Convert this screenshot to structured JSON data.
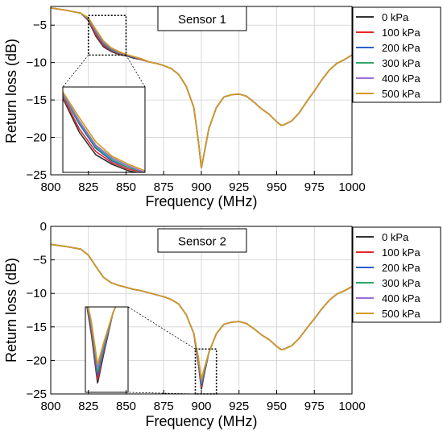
{
  "chart_data": [
    {
      "type": "line",
      "title": "Sensor 1",
      "xlabel": "Frequency (MHz)",
      "ylabel": "Return loss (dB)",
      "xlim": [
        800,
        1000
      ],
      "ylim": [
        -25,
        -2.5
      ],
      "xticks": [
        "800",
        "825",
        "850",
        "875",
        "900",
        "925",
        "950",
        "975",
        "1000"
      ],
      "yticks": [
        "-5",
        "-10",
        "-15",
        "-20",
        "-25"
      ],
      "grid": true,
      "legend": "right",
      "x": [
        800,
        810,
        820,
        825,
        830,
        835,
        840,
        845,
        850,
        855,
        860,
        865,
        870,
        875,
        880,
        885,
        890,
        895,
        898,
        900,
        902,
        905,
        910,
        915,
        920,
        925,
        930,
        935,
        940,
        945,
        950,
        953,
        955,
        960,
        965,
        970,
        975,
        980,
        985,
        990,
        995,
        1000
      ],
      "series": [
        {
          "name": "0 kPa",
          "color": "#333333",
          "values": [
            -2.7,
            -3.0,
            -3.4,
            -4.4,
            -6.5,
            -7.9,
            -8.5,
            -8.9,
            -9.1,
            -9.4,
            -9.6,
            -9.9,
            -10.1,
            -10.4,
            -10.8,
            -11.6,
            -13.2,
            -16.0,
            -20.5,
            -24.1,
            -22.0,
            -18.8,
            -16.0,
            -14.6,
            -14.3,
            -14.2,
            -14.5,
            -15.3,
            -16.2,
            -16.9,
            -17.9,
            -18.4,
            -18.3,
            -17.8,
            -16.7,
            -15.2,
            -13.8,
            -12.3,
            -11.0,
            -10.1,
            -9.6,
            -9.0
          ]
        },
        {
          "name": "100 kPa",
          "color": "#e8262a",
          "values": [
            -2.7,
            -3.0,
            -3.4,
            -4.3,
            -6.3,
            -7.7,
            -8.4,
            -8.8,
            -9.0,
            -9.3,
            -9.6,
            -9.9,
            -10.1,
            -10.4,
            -10.8,
            -11.6,
            -13.2,
            -16.0,
            -20.5,
            -24.1,
            -22.0,
            -18.8,
            -16.0,
            -14.6,
            -14.3,
            -14.2,
            -14.5,
            -15.3,
            -16.2,
            -16.9,
            -17.9,
            -18.4,
            -18.3,
            -17.8,
            -16.7,
            -15.2,
            -13.8,
            -12.3,
            -11.0,
            -10.1,
            -9.6,
            -9.0
          ]
        },
        {
          "name": "200 kPa",
          "color": "#2a5fc8",
          "values": [
            -2.7,
            -3.0,
            -3.4,
            -4.2,
            -6.0,
            -7.5,
            -8.3,
            -8.7,
            -9.0,
            -9.3,
            -9.5,
            -9.9,
            -10.1,
            -10.4,
            -10.8,
            -11.6,
            -13.2,
            -16.0,
            -20.5,
            -24.1,
            -22.0,
            -18.8,
            -16.0,
            -14.6,
            -14.3,
            -14.2,
            -14.5,
            -15.3,
            -16.2,
            -16.9,
            -17.9,
            -18.4,
            -18.3,
            -17.8,
            -16.7,
            -15.2,
            -13.8,
            -12.3,
            -11.0,
            -10.1,
            -9.6,
            -9.0
          ]
        },
        {
          "name": "300 kPa",
          "color": "#2fa66a",
          "values": [
            -2.7,
            -3.0,
            -3.4,
            -4.2,
            -5.9,
            -7.4,
            -8.2,
            -8.7,
            -9.0,
            -9.2,
            -9.5,
            -9.9,
            -10.1,
            -10.4,
            -10.8,
            -11.6,
            -13.2,
            -16.0,
            -20.5,
            -24.1,
            -22.0,
            -18.8,
            -16.0,
            -14.6,
            -14.3,
            -14.2,
            -14.5,
            -15.3,
            -16.2,
            -16.9,
            -17.9,
            -18.4,
            -18.3,
            -17.8,
            -16.7,
            -15.2,
            -13.8,
            -12.3,
            -11.0,
            -10.1,
            -9.6,
            -9.0
          ]
        },
        {
          "name": "400 kPa",
          "color": "#9b6fd6",
          "values": [
            -2.7,
            -3.0,
            -3.4,
            -4.1,
            -5.8,
            -7.3,
            -8.1,
            -8.6,
            -9.0,
            -9.2,
            -9.5,
            -9.9,
            -10.1,
            -10.4,
            -10.8,
            -11.6,
            -13.2,
            -16.0,
            -20.5,
            -24.1,
            -22.0,
            -18.8,
            -16.0,
            -14.6,
            -14.3,
            -14.2,
            -14.5,
            -15.3,
            -16.2,
            -16.9,
            -17.9,
            -18.4,
            -18.3,
            -17.8,
            -16.7,
            -15.2,
            -13.8,
            -12.3,
            -11.0,
            -10.1,
            -9.6,
            -9.0
          ]
        },
        {
          "name": "500 kPa",
          "color": "#d59a1a",
          "values": [
            -2.7,
            -3.0,
            -3.4,
            -4.0,
            -5.6,
            -7.1,
            -8.0,
            -8.5,
            -8.9,
            -9.2,
            -9.5,
            -9.9,
            -10.1,
            -10.4,
            -10.8,
            -11.6,
            -13.2,
            -16.0,
            -20.5,
            -24.1,
            -22.0,
            -18.8,
            -16.0,
            -14.6,
            -14.3,
            -14.2,
            -14.5,
            -15.3,
            -16.2,
            -16.9,
            -17.9,
            -18.4,
            -18.3,
            -17.8,
            -16.7,
            -15.2,
            -13.8,
            -12.3,
            -11.0,
            -10.1,
            -9.6,
            -9.0
          ]
        }
      ],
      "zoom_region": {
        "xlim": [
          825,
          850
        ],
        "ylim": [
          -9,
          -3.7
        ]
      }
    },
    {
      "type": "line",
      "title": "Sensor 2",
      "xlabel": "Frequency (MHz)",
      "ylabel": "Return loss (dB)",
      "xlim": [
        800,
        1000
      ],
      "ylim": [
        -25,
        0
      ],
      "xticks": [
        "800",
        "825",
        "850",
        "875",
        "900",
        "925",
        "950",
        "975",
        "1000"
      ],
      "yticks": [
        "0",
        "-5",
        "-10",
        "-15",
        "-20",
        "-25"
      ],
      "grid": true,
      "legend": "right",
      "x": [
        800,
        810,
        820,
        825,
        830,
        835,
        840,
        845,
        850,
        855,
        860,
        865,
        870,
        875,
        880,
        885,
        890,
        895,
        898,
        900,
        902,
        905,
        910,
        915,
        920,
        925,
        930,
        935,
        940,
        945,
        950,
        953,
        955,
        960,
        965,
        970,
        975,
        980,
        985,
        990,
        995,
        1000
      ],
      "series": [
        {
          "name": "0 kPa",
          "color": "#333333",
          "values": [
            -2.7,
            -3.0,
            -3.4,
            -4.3,
            -6.0,
            -7.6,
            -8.4,
            -8.8,
            -9.1,
            -9.4,
            -9.6,
            -9.9,
            -10.2,
            -10.5,
            -10.9,
            -11.6,
            -13.2,
            -16.0,
            -20.5,
            -24.3,
            -22.0,
            -18.8,
            -16.0,
            -14.6,
            -14.3,
            -14.2,
            -14.5,
            -15.3,
            -16.2,
            -16.9,
            -17.9,
            -18.4,
            -18.3,
            -17.8,
            -16.7,
            -15.2,
            -13.8,
            -12.3,
            -11.0,
            -10.1,
            -9.6,
            -9.0
          ]
        },
        {
          "name": "100 kPa",
          "color": "#e8262a",
          "values": [
            -2.7,
            -3.0,
            -3.4,
            -4.3,
            -6.0,
            -7.6,
            -8.4,
            -8.8,
            -9.1,
            -9.4,
            -9.6,
            -9.9,
            -10.2,
            -10.5,
            -10.9,
            -11.6,
            -13.2,
            -16.0,
            -20.3,
            -24.0,
            -21.8,
            -18.8,
            -16.0,
            -14.6,
            -14.3,
            -14.2,
            -14.5,
            -15.3,
            -16.2,
            -16.9,
            -17.9,
            -18.4,
            -18.3,
            -17.8,
            -16.7,
            -15.2,
            -13.8,
            -12.3,
            -11.0,
            -10.1,
            -9.6,
            -9.0
          ]
        },
        {
          "name": "200 kPa",
          "color": "#2a5fc8",
          "values": [
            -2.7,
            -3.0,
            -3.4,
            -4.3,
            -6.0,
            -7.6,
            -8.4,
            -8.8,
            -9.1,
            -9.4,
            -9.6,
            -9.9,
            -10.2,
            -10.5,
            -10.9,
            -11.6,
            -13.2,
            -16.0,
            -20.1,
            -23.7,
            -21.7,
            -18.8,
            -16.0,
            -14.6,
            -14.3,
            -14.2,
            -14.5,
            -15.3,
            -16.2,
            -16.9,
            -17.9,
            -18.4,
            -18.3,
            -17.8,
            -16.7,
            -15.2,
            -13.8,
            -12.3,
            -11.0,
            -10.1,
            -9.6,
            -9.0
          ]
        },
        {
          "name": "300 kPa",
          "color": "#2fa66a",
          "values": [
            -2.7,
            -3.0,
            -3.4,
            -4.3,
            -6.0,
            -7.6,
            -8.4,
            -8.8,
            -9.1,
            -9.4,
            -9.6,
            -9.9,
            -10.2,
            -10.5,
            -10.9,
            -11.6,
            -13.2,
            -16.0,
            -19.9,
            -23.4,
            -21.5,
            -18.8,
            -16.0,
            -14.6,
            -14.3,
            -14.2,
            -14.5,
            -15.3,
            -16.2,
            -16.9,
            -17.9,
            -18.4,
            -18.3,
            -17.8,
            -16.7,
            -15.2,
            -13.8,
            -12.3,
            -11.0,
            -10.1,
            -9.6,
            -9.0
          ]
        },
        {
          "name": "400 kPa",
          "color": "#9b6fd6",
          "values": [
            -2.7,
            -3.0,
            -3.4,
            -4.3,
            -6.0,
            -7.6,
            -8.4,
            -8.8,
            -9.1,
            -9.4,
            -9.6,
            -9.9,
            -10.2,
            -10.5,
            -10.9,
            -11.6,
            -13.2,
            -16.0,
            -19.7,
            -23.1,
            -21.3,
            -18.8,
            -16.0,
            -14.6,
            -14.3,
            -14.2,
            -14.5,
            -15.3,
            -16.2,
            -16.9,
            -17.9,
            -18.4,
            -18.3,
            -17.8,
            -16.7,
            -15.2,
            -13.8,
            -12.3,
            -11.0,
            -10.1,
            -9.6,
            -9.0
          ]
        },
        {
          "name": "500 kPa",
          "color": "#d59a1a",
          "values": [
            -2.7,
            -3.0,
            -3.4,
            -4.3,
            -6.0,
            -7.6,
            -8.4,
            -8.8,
            -9.1,
            -9.4,
            -9.6,
            -9.9,
            -10.2,
            -10.5,
            -10.9,
            -11.6,
            -13.2,
            -16.0,
            -19.5,
            -22.8,
            -21.1,
            -18.8,
            -16.0,
            -14.6,
            -14.3,
            -14.2,
            -14.5,
            -15.3,
            -16.2,
            -16.9,
            -17.9,
            -18.4,
            -18.3,
            -17.8,
            -16.7,
            -15.2,
            -13.8,
            -12.3,
            -11.0,
            -10.1,
            -9.6,
            -9.0
          ]
        }
      ],
      "zoom_region": {
        "xlim": [
          896,
          910
        ],
        "ylim": [
          -25,
          -18.3
        ]
      }
    }
  ]
}
